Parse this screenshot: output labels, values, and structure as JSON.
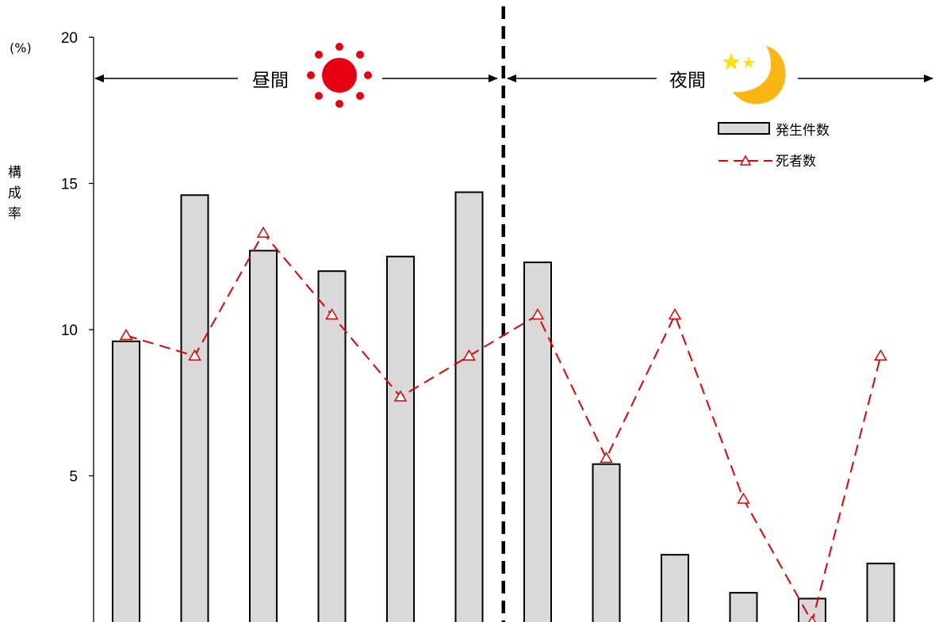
{
  "chart_data": {
    "type": "bar",
    "unit": "(%)",
    "ylabel": "構成率",
    "ylim": [
      0,
      20
    ],
    "yticks": [
      5,
      10,
      15,
      20
    ],
    "grid": false,
    "legend_position": "top-right",
    "categories": [
      "",
      "",
      "",
      "",
      "",
      "",
      "",
      "",
      "",
      "",
      "",
      ""
    ],
    "series": [
      {
        "name": "発生件数",
        "kind": "bar",
        "color": "#d9d9d9",
        "values": [
          9.6,
          14.6,
          12.7,
          12.0,
          12.5,
          14.7,
          12.3,
          5.4,
          2.3,
          1.0,
          0.8,
          2.0
        ]
      },
      {
        "name": "死者数",
        "kind": "line",
        "style": "dashed",
        "marker": "triangle",
        "color": "#e60000",
        "values": [
          9.8,
          9.1,
          13.3,
          10.5,
          7.7,
          9.1,
          10.5,
          5.6,
          10.5,
          4.2,
          0.0,
          9.1
        ]
      }
    ],
    "annotations": [
      {
        "label": "昼間",
        "icon": "sun-icon",
        "span": "left"
      },
      {
        "label": "夜間",
        "icon": "moon-icon",
        "span": "right"
      }
    ],
    "divider": {
      "style": "dashed",
      "color": "#000000",
      "after_category_index": 5
    }
  }
}
